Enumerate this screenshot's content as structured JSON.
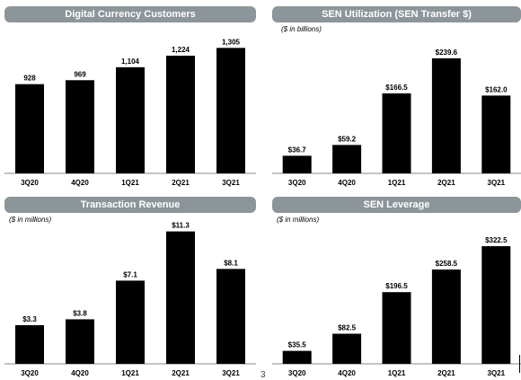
{
  "page_number": "3",
  "chart_data": [
    {
      "type": "bar",
      "title": "Digital Currency Customers",
      "subtitle": "",
      "categories": [
        "3Q20",
        "4Q20",
        "1Q21",
        "2Q21",
        "3Q21"
      ],
      "values": [
        928,
        969,
        1104,
        1224,
        1305
      ],
      "data_labels": [
        "928",
        "969",
        "1,104",
        "1,224",
        "1,305"
      ],
      "ylim": [
        0,
        1420
      ],
      "bar_color": "#000000",
      "banner_color": "#8c9599"
    },
    {
      "type": "bar",
      "title": "SEN Utilization (SEN Transfer $)",
      "subtitle": "($ in billions)",
      "categories": [
        "3Q20",
        "4Q20",
        "1Q21",
        "2Q21",
        "3Q21"
      ],
      "values": [
        36.7,
        59.2,
        166.5,
        239.6,
        162.0
      ],
      "data_labels": [
        "$36.7",
        "$59.2",
        "$166.5",
        "$239.6",
        "$162.0"
      ],
      "ylim": [
        0,
        245
      ],
      "bar_color": "#000000",
      "banner_color": "#8c9599"
    },
    {
      "type": "bar",
      "title": "Transaction Revenue",
      "subtitle": "($ in millions)",
      "categories": [
        "3Q20",
        "4Q20",
        "1Q21",
        "2Q21",
        "3Q21"
      ],
      "values": [
        3.3,
        3.8,
        7.1,
        11.3,
        8.1
      ],
      "data_labels": [
        "$3.3",
        "$3.8",
        "$7.1",
        "$11.3",
        "$8.1"
      ],
      "ylim": [
        0,
        11.5
      ],
      "bar_color": "#000000",
      "banner_color": "#8c9599"
    },
    {
      "type": "bar",
      "title": "SEN Leverage",
      "subtitle": "($ in millions)",
      "categories": [
        "3Q20",
        "4Q20",
        "1Q21",
        "2Q21",
        "3Q21"
      ],
      "values": [
        35.5,
        82.5,
        196.5,
        258.5,
        322.5
      ],
      "data_labels": [
        "$35.5",
        "$82.5",
        "$196.5",
        "$258.5",
        "$322.5"
      ],
      "ylim": [
        0,
        330
      ],
      "bar_color": "#000000",
      "banner_color": "#8c9599"
    }
  ]
}
